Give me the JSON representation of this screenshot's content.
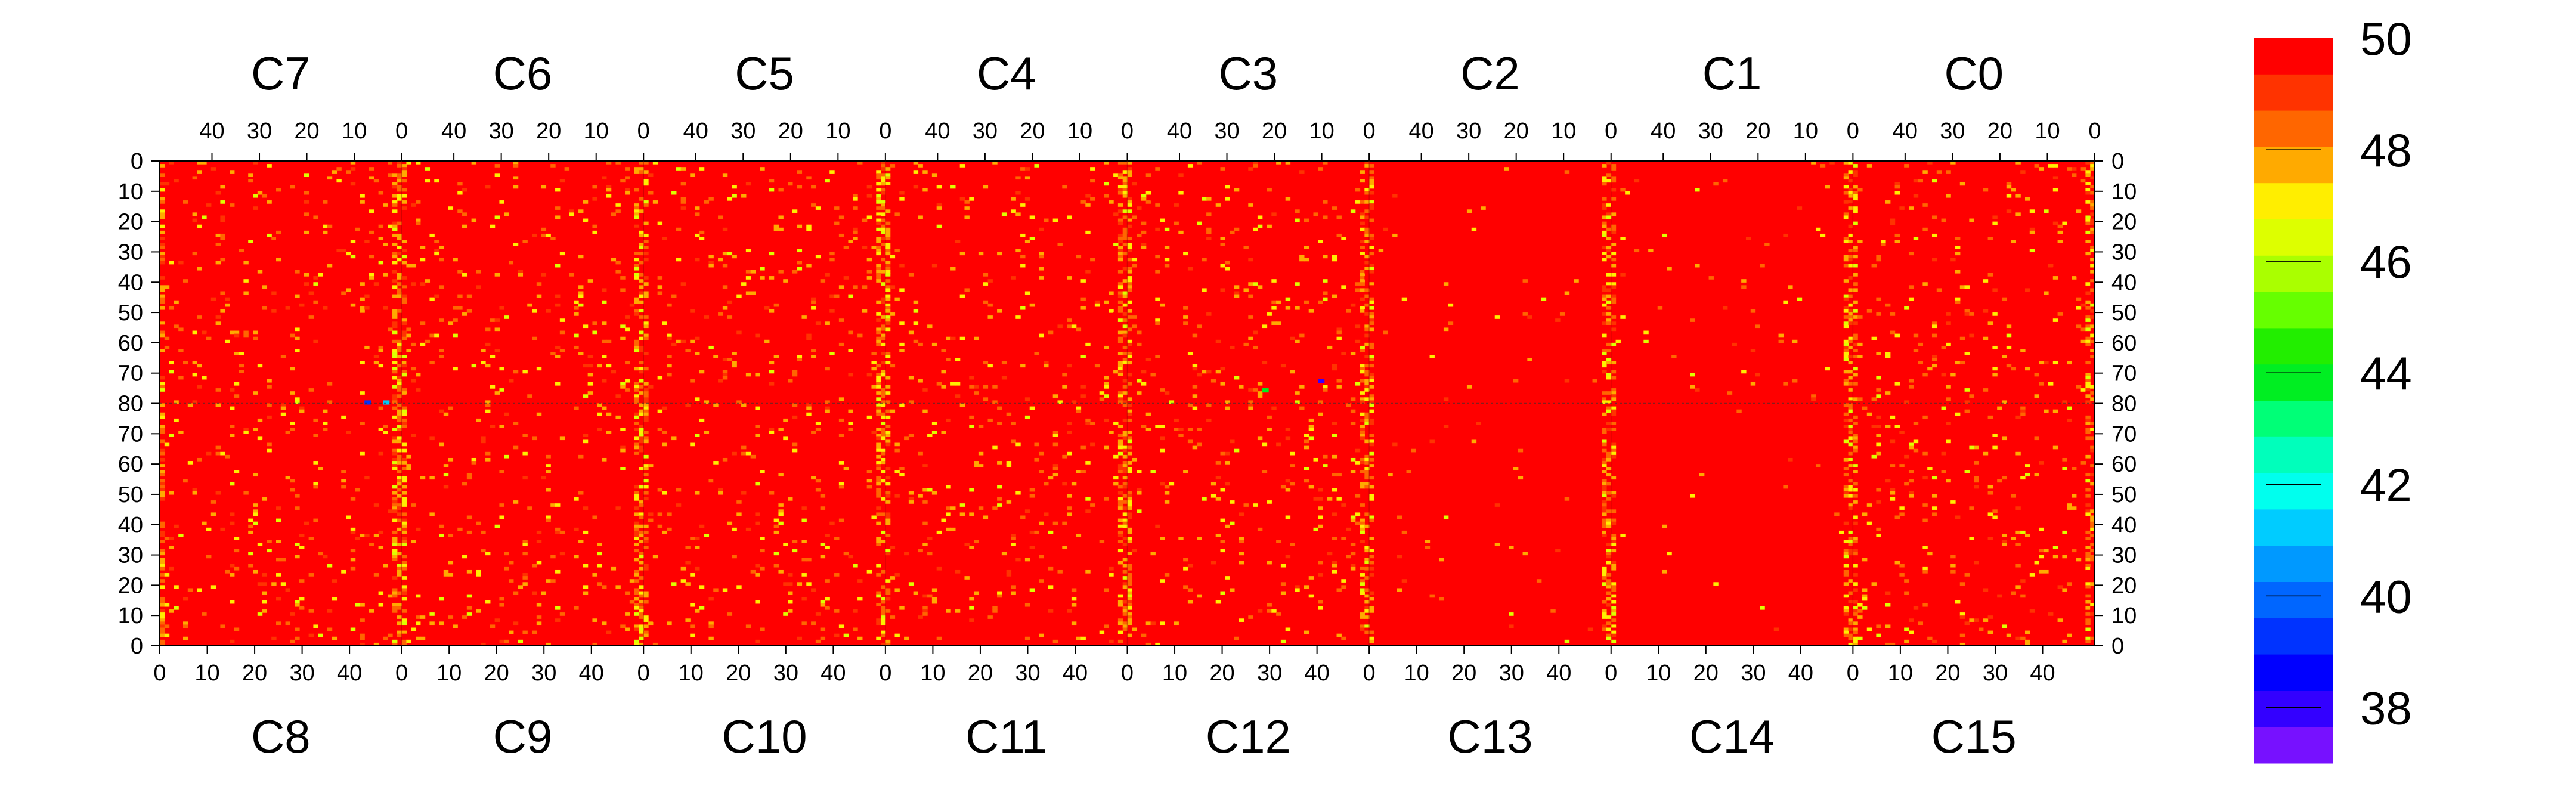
{
  "chart_data": {
    "type": "heatmap",
    "colorbar": {
      "range": [
        37,
        50
      ],
      "tick_labels": [
        "50",
        "48",
        "46",
        "44",
        "42",
        "40",
        "38"
      ],
      "tick_values": [
        50,
        48,
        46,
        44,
        42,
        40,
        38
      ],
      "colors": [
        "#ff0000",
        "#ff3300",
        "#ff6600",
        "#ffaa00",
        "#ffee00",
        "#ddff00",
        "#aaff00",
        "#66ff00",
        "#22ee00",
        "#00ee22",
        "#00ff77",
        "#00ffbb",
        "#00ffee",
        "#00ccff",
        "#0099ff",
        "#0066ff",
        "#0033ff",
        "#0000ff",
        "#3300ff",
        "#7711ff"
      ]
    },
    "top_chips": [
      "C7",
      "C6",
      "C5",
      "C4",
      "C3",
      "C2",
      "C1",
      "C0"
    ],
    "bottom_chips": [
      "C8",
      "C9",
      "C10",
      "C11",
      "C12",
      "C13",
      "C14",
      "C15"
    ],
    "top_col_ticks": [
      "40",
      "30",
      "20",
      "10",
      "0"
    ],
    "bottom_col_ticks": [
      "0",
      "10",
      "20",
      "30",
      "40"
    ],
    "row_ticks": [
      "0",
      "10",
      "20",
      "30",
      "40",
      "50",
      "60",
      "70",
      "80",
      "70",
      "60",
      "50",
      "40",
      "30",
      "20",
      "10",
      "0"
    ],
    "columns_per_chip": 52,
    "rows_per_chip": 80,
    "predominant_value": 50,
    "hot_value_range": [
      46.5,
      48.5
    ],
    "hot_columns": "chip edge columns (col 0 and 51) show values around 47-48; rest mostly 50",
    "outliers": [
      {
        "chip": "C3",
        "col": 22,
        "row": 75,
        "value": 44
      },
      {
        "chip": "C3",
        "col": 10,
        "row": 72,
        "value": 38
      },
      {
        "chip": "C7",
        "col": 7,
        "row": 79,
        "value": 39
      },
      {
        "chip": "C7",
        "col": 3,
        "row": 79,
        "value": 41
      }
    ]
  }
}
